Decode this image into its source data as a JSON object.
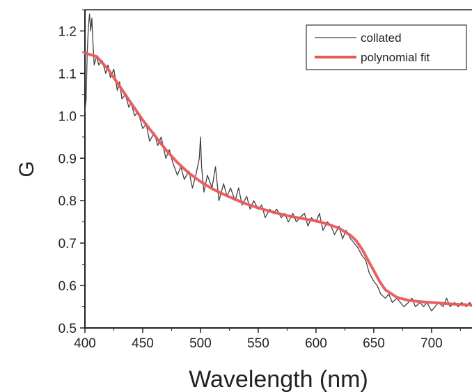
{
  "chart_data": {
    "type": "line",
    "title": "",
    "xlabel": "Wavelength (nm)",
    "ylabel": "G",
    "xlim": [
      400,
      735
    ],
    "ylim": [
      0.5,
      1.25
    ],
    "x_ticks": [
      400,
      450,
      500,
      550,
      600,
      650,
      700
    ],
    "x_tick_labels": [
      "400",
      "450",
      "500",
      "550",
      "600",
      "650",
      "700"
    ],
    "y_ticks": [
      0.5,
      0.6,
      0.7,
      0.8,
      0.9,
      1.0,
      1.1,
      1.2
    ],
    "y_tick_labels": [
      "0.5",
      "0.6",
      "0.7",
      "0.8",
      "0.9",
      "1.0",
      "1.1",
      "1.2"
    ],
    "grid": false,
    "legend_position": "top-right",
    "series": [
      {
        "name": "collated",
        "color": "#404040",
        "x": [
          400,
          401,
          402,
          403,
          404,
          405,
          406,
          407,
          408,
          410,
          412,
          415,
          418,
          420,
          422,
          425,
          428,
          430,
          432,
          435,
          438,
          440,
          443,
          446,
          450,
          453,
          456,
          460,
          463,
          466,
          470,
          473,
          476,
          480,
          483,
          486,
          490,
          493,
          496,
          499,
          500,
          501,
          503,
          506,
          510,
          513,
          516,
          520,
          523,
          526,
          530,
          533,
          536,
          540,
          543,
          546,
          550,
          553,
          556,
          560,
          563,
          566,
          570,
          573,
          576,
          580,
          583,
          586,
          590,
          593,
          596,
          600,
          603,
          606,
          610,
          613,
          616,
          620,
          623,
          626,
          630,
          633,
          636,
          640,
          643,
          646,
          650,
          653,
          656,
          660,
          663,
          666,
          670,
          673,
          676,
          680,
          683,
          686,
          690,
          693,
          696,
          700,
          703,
          706,
          710,
          713,
          716,
          720,
          723,
          726,
          730,
          733,
          735
        ],
        "y": [
          1.01,
          1.04,
          1.15,
          1.21,
          1.24,
          1.2,
          1.23,
          1.17,
          1.12,
          1.14,
          1.12,
          1.13,
          1.1,
          1.12,
          1.09,
          1.11,
          1.06,
          1.08,
          1.04,
          1.05,
          1.02,
          1.03,
          1.0,
          1.01,
          0.97,
          0.98,
          0.94,
          0.96,
          0.93,
          0.95,
          0.9,
          0.92,
          0.89,
          0.86,
          0.88,
          0.85,
          0.87,
          0.83,
          0.86,
          0.9,
          0.95,
          0.88,
          0.82,
          0.86,
          0.83,
          0.88,
          0.8,
          0.84,
          0.81,
          0.83,
          0.8,
          0.83,
          0.79,
          0.81,
          0.78,
          0.8,
          0.78,
          0.79,
          0.76,
          0.78,
          0.77,
          0.78,
          0.76,
          0.77,
          0.75,
          0.77,
          0.75,
          0.76,
          0.77,
          0.74,
          0.76,
          0.75,
          0.77,
          0.73,
          0.75,
          0.74,
          0.72,
          0.74,
          0.71,
          0.73,
          0.71,
          0.7,
          0.69,
          0.67,
          0.66,
          0.63,
          0.61,
          0.6,
          0.58,
          0.57,
          0.58,
          0.56,
          0.57,
          0.56,
          0.55,
          0.56,
          0.57,
          0.55,
          0.56,
          0.55,
          0.56,
          0.54,
          0.55,
          0.56,
          0.55,
          0.57,
          0.55,
          0.56,
          0.55,
          0.56,
          0.55,
          0.56,
          0.55
        ]
      },
      {
        "name": "polynomial fit",
        "color": "#e8585a",
        "x": [
          400,
          410,
          420,
          430,
          440,
          450,
          460,
          470,
          480,
          490,
          500,
          510,
          520,
          530,
          540,
          550,
          560,
          570,
          580,
          590,
          600,
          610,
          620,
          630,
          635,
          640,
          645,
          650,
          655,
          660,
          670,
          680,
          690,
          700,
          710,
          720,
          735
        ],
        "y": [
          1.148,
          1.14,
          1.11,
          1.07,
          1.03,
          0.99,
          0.955,
          0.92,
          0.89,
          0.865,
          0.845,
          0.828,
          0.815,
          0.803,
          0.792,
          0.783,
          0.775,
          0.768,
          0.762,
          0.757,
          0.752,
          0.745,
          0.735,
          0.718,
          0.705,
          0.685,
          0.66,
          0.635,
          0.61,
          0.59,
          0.572,
          0.565,
          0.562,
          0.56,
          0.558,
          0.556,
          0.554
        ]
      }
    ]
  }
}
